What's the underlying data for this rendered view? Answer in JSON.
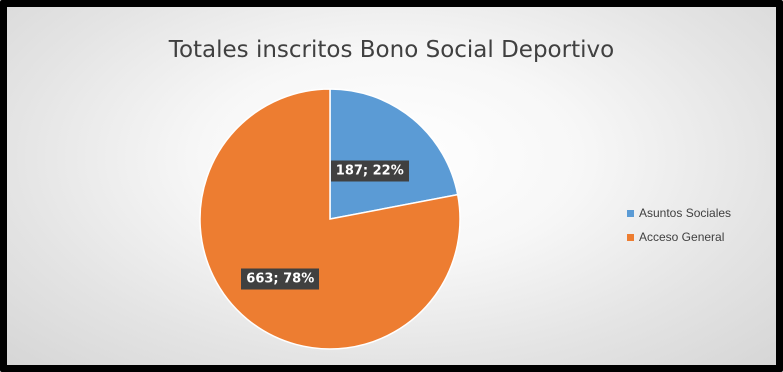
{
  "chart_data": {
    "type": "pie",
    "title": "Totales inscritos Bono Social Deportivo",
    "legend_position": "right",
    "slices": [
      {
        "name": "Asuntos Sociales",
        "value": 187,
        "percent": 22,
        "label": "187; 22%",
        "color": "#5b9bd5"
      },
      {
        "name": "Acceso General",
        "value": 663,
        "percent": 78,
        "label": "663; 78%",
        "color": "#ed7d31"
      }
    ]
  }
}
